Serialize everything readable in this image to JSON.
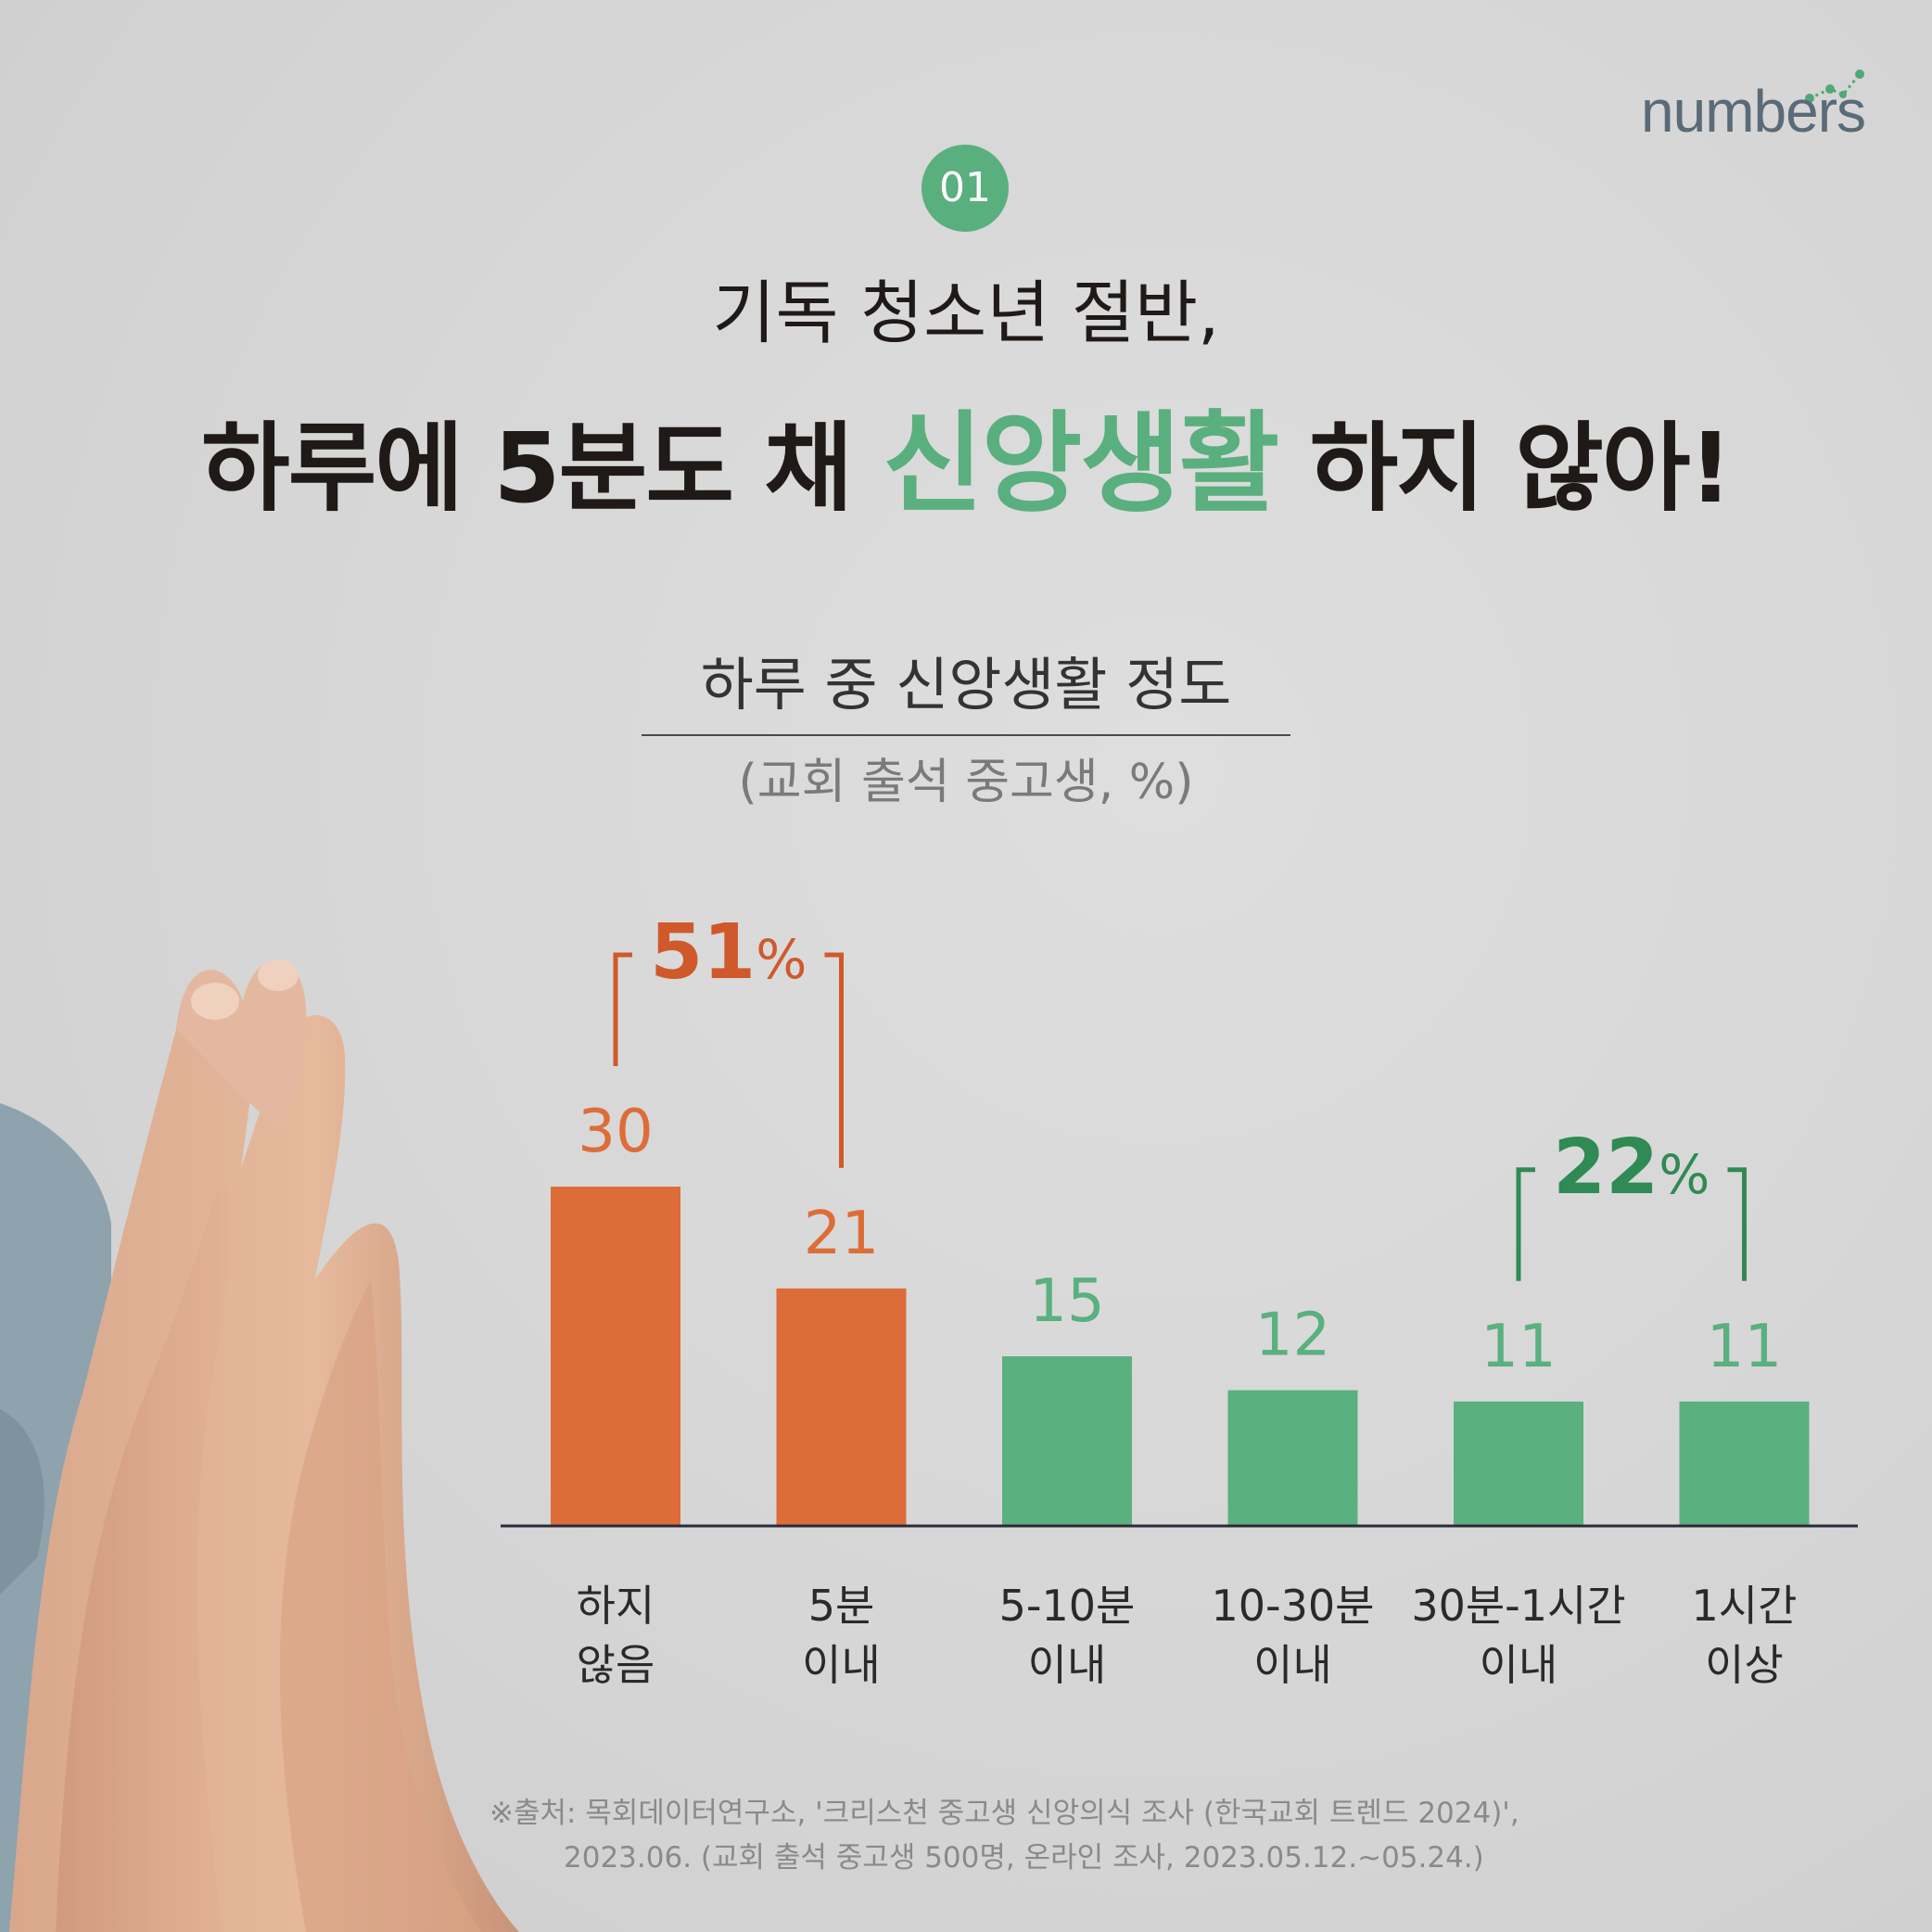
{
  "brand": {
    "logo_text": "numbers"
  },
  "badge": {
    "number": "01"
  },
  "headline": {
    "line1": "기독 청소년 절반,",
    "line2_before": "하루에 5분도 채 ",
    "line2_highlight": "신앙생활",
    "line2_after": " 하지 않아!"
  },
  "chart_data": {
    "type": "bar",
    "title": "하루 중 신앙생활 정도",
    "subtitle": "(교회 출석 중고생, %)",
    "categories": [
      "하지 않음",
      "5분 이내",
      "5-10분 이내",
      "10-30분 이내",
      "30분-1시간 이내",
      "1시간 이상"
    ],
    "category_lines": [
      [
        "하지",
        "않음"
      ],
      [
        "5분",
        "이내"
      ],
      [
        "5-10분",
        "이내"
      ],
      [
        "10-30분",
        "이내"
      ],
      [
        "30분-1시간",
        "이내"
      ],
      [
        "1시간",
        "이상"
      ]
    ],
    "values": [
      30,
      21,
      15,
      12,
      11,
      11
    ],
    "value_labels": [
      "30",
      "21",
      "15",
      "12",
      "11",
      "11"
    ],
    "ylim": [
      0,
      30
    ],
    "grid": false,
    "bar_colors": [
      "#dd6d38",
      "#dd6d38",
      "#5ab07f",
      "#5ab07f",
      "#5ab07f",
      "#5ab07f"
    ],
    "annotations": [
      {
        "label_num": "51",
        "label_unit": "%",
        "bars": [
          0,
          1
        ],
        "color": "#d0592b"
      },
      {
        "label_num": "22",
        "label_unit": "%",
        "bars": [
          4,
          5
        ],
        "color": "#2f8a54"
      }
    ]
  },
  "source": {
    "line1": "※출처: 목회데이터연구소, '크리스천 중고생 신앙의식 조사 (한국교회 트렌드 2024)',",
    "line2": "2023.06. (교회 출석 중고생 500명, 온라인 조사,  2023.05.12.~05.24.)"
  },
  "colors": {
    "accent_green": "#5aaf7e",
    "accent_orange": "#dd6d38",
    "text_dark": "#1f1a17"
  }
}
